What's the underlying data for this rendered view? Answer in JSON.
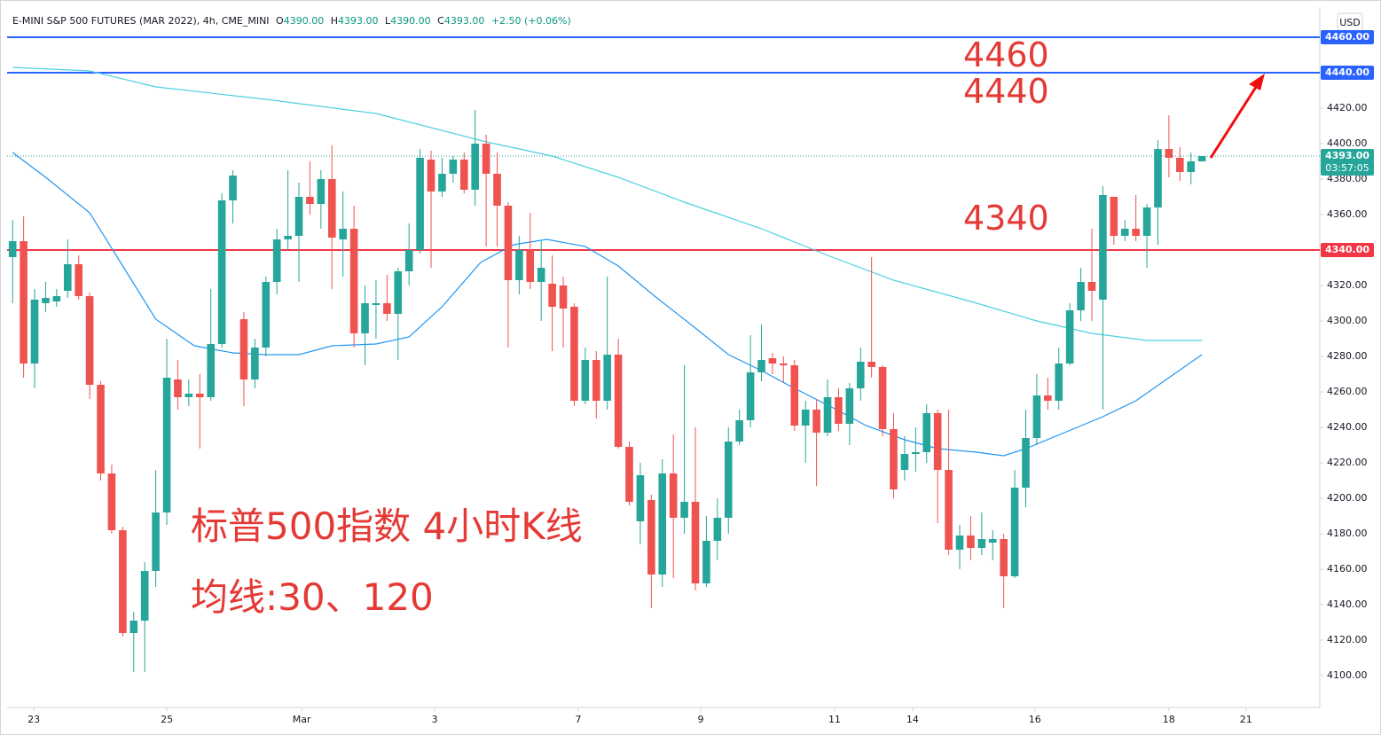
{
  "chart_data": {
    "type": "candlestick",
    "title": "E-MINI S&P 500 FUTURES (MAR 2022), 4h, CME_MINI",
    "legend_values": [
      {
        "key": "O",
        "text": "4390.00"
      },
      {
        "key": "H",
        "text": "4393.00"
      },
      {
        "key": "L",
        "text": "4390.00"
      },
      {
        "key": "C",
        "text": "4393.00"
      }
    ],
    "change": "+2.50 (+0.06%)",
    "currency": "USD",
    "up_color": "#26a69a",
    "down_color": "#ef5350",
    "open": [
      4336,
      4345,
      4276,
      4310,
      4311,
      4317,
      4332,
      4314,
      4264,
      4214,
      4182,
      4124,
      4131,
      4159,
      4192,
      4267,
      4257,
      4259,
      4257,
      4287,
      4368,
      4301,
      4267,
      4285,
      4322,
      4346,
      4348,
      4370,
      4366,
      4380,
      4346,
      4352,
      4293,
      4309,
      4310,
      4304,
      4328,
      4340,
      4391,
      4373,
      4383,
      4391,
      4374,
      4400,
      4383,
      4365,
      4323,
      4340,
      4322,
      4321,
      4320,
      4308,
      4255,
      4278,
      4255,
      4281,
      4229,
      4187,
      4199,
      4157,
      4214,
      4189,
      4198,
      4152,
      4176,
      4189,
      4232,
      4244,
      4271,
      4279,
      4276,
      4275,
      4241,
      4250,
      4237,
      4257,
      4242,
      4262,
      4277,
      4274,
      4239,
      4216,
      4225,
      4226,
      4248,
      4216,
      4171,
      4179,
      4172,
      4175,
      4177,
      4156,
      4206,
      4234,
      4258,
      4255,
      4276,
      4306,
      4322,
      4312,
      4370,
      4348,
      4352,
      4348,
      4364,
      4397,
      4392,
      4384,
      4390
    ],
    "high": [
      4357,
      4359,
      4318,
      4322,
      4318,
      4346,
      4337,
      4316,
      4266,
      4219,
      4184,
      4136,
      4164,
      4216,
      4290,
      4278,
      4267,
      4270,
      4318,
      4372,
      4385,
      4305,
      4290,
      4325,
      4352,
      4385,
      4378,
      4390,
      4385,
      4399,
      4373,
      4365,
      4320,
      4323,
      4326,
      4330,
      4355,
      4397,
      4396,
      4392,
      4393,
      4395,
      4419,
      4405,
      4395,
      4367,
      4348,
      4361,
      4345,
      4337,
      4325,
      4310,
      4285,
      4283,
      4325,
      4290,
      4232,
      4220,
      4202,
      4222,
      4236,
      4275,
      4240,
      4190,
      4200,
      4240,
      4250,
      4292,
      4298,
      4282,
      4280,
      4278,
      4255,
      4256,
      4267,
      4262,
      4265,
      4285,
      4336,
      4275,
      4248,
      4235,
      4240,
      4253,
      4250,
      4250,
      4185,
      4190,
      4192,
      4182,
      4180,
      4216,
      4250,
      4270,
      4268,
      4285,
      4310,
      4330,
      4352,
      4376,
      4370,
      4357,
      4371,
      4366,
      4402,
      4416,
      4398,
      4395,
      4393
    ],
    "low": [
      4310,
      4268,
      4262,
      4305,
      4308,
      4313,
      4312,
      4256,
      4210,
      4180,
      4122,
      4102,
      4102,
      4150,
      4185,
      4250,
      4252,
      4228,
      4255,
      4285,
      4355,
      4252,
      4262,
      4280,
      4315,
      4340,
      4322,
      4360,
      4352,
      4318,
      4325,
      4285,
      4275,
      4290,
      4300,
      4278,
      4320,
      4338,
      4330,
      4370,
      4378,
      4372,
      4365,
      4342,
      4342,
      4285,
      4315,
      4318,
      4300,
      4283,
      4285,
      4252,
      4253,
      4245,
      4250,
      4228,
      4196,
      4174,
      4138,
      4150,
      4155,
      4180,
      4148,
      4150,
      4165,
      4180,
      4230,
      4240,
      4266,
      4270,
      4265,
      4238,
      4220,
      4207,
      4235,
      4238,
      4230,
      4255,
      4268,
      4235,
      4200,
      4210,
      4215,
      4220,
      4186,
      4168,
      4160,
      4165,
      4168,
      4165,
      4138,
      4155,
      4195,
      4230,
      4250,
      4250,
      4275,
      4300,
      4300,
      4250,
      4343,
      4345,
      4345,
      4330,
      4343,
      4381,
      4379,
      4377,
      4390
    ],
    "close": [
      4345,
      4276,
      4312,
      4313,
      4314,
      4332,
      4314,
      4264,
      4214,
      4182,
      4124,
      4131,
      4159,
      4192,
      4268,
      4257,
      4259,
      4257,
      4287,
      4368,
      4382,
      4267,
      4285,
      4322,
      4346,
      4348,
      4370,
      4366,
      4380,
      4347,
      4352,
      4293,
      4310,
      4310,
      4304,
      4328,
      4340,
      4392,
      4373,
      4383,
      4391,
      4374,
      4400,
      4383,
      4365,
      4323,
      4340,
      4322,
      4330,
      4308,
      4307,
      4255,
      4278,
      4255,
      4281,
      4229,
      4198,
      4213,
      4157,
      4214,
      4189,
      4198,
      4152,
      4176,
      4189,
      4232,
      4244,
      4271,
      4278,
      4276,
      4275,
      4241,
      4250,
      4237,
      4257,
      4242,
      4262,
      4277,
      4274,
      4239,
      4205,
      4225,
      4226,
      4248,
      4216,
      4171,
      4179,
      4172,
      4177,
      4177,
      4156,
      4206,
      4234,
      4258,
      4255,
      4276,
      4306,
      4322,
      4317,
      4371,
      4348,
      4352,
      4348,
      4364,
      4397,
      4392,
      4384,
      4390,
      4393
    ],
    "series": [
      {
        "name": "MA 120",
        "color": "#4dd0e1",
        "x": [
          0,
          7,
          13,
          23,
          33,
          43,
          49,
          55,
          61,
          68,
          74,
          80,
          87,
          93,
          98,
          103,
          108
        ],
        "values": [
          4443,
          4441,
          4432,
          4425,
          4417,
          4401,
          4393,
          4381,
          4367,
          4352,
          4337,
          4323,
          4311,
          4300,
          4293,
          4289,
          4289
        ]
      },
      {
        "name": "MA 30",
        "color": "#2196f3",
        "x": [
          0,
          3,
          7,
          10,
          13,
          16.5,
          20,
          23,
          26,
          29,
          33,
          36,
          39,
          42.5,
          45.5,
          48.5,
          52,
          55,
          58.5,
          62,
          65,
          68,
          71,
          74.5,
          77.5,
          81,
          84,
          87.5,
          90,
          92,
          95.5,
          99,
          102,
          105,
          108
        ],
        "values": [
          4395,
          4381,
          4361,
          4331,
          4301,
          4286,
          4282,
          4281,
          4281,
          4286,
          4287,
          4291,
          4308,
          4333,
          4343,
          4346,
          4342,
          4331,
          4313,
          4296,
          4281,
          4272,
          4262,
          4251,
          4241,
          4233,
          4228,
          4226,
          4224,
          4228,
          4237,
          4246,
          4255,
          4268,
          4281
        ]
      }
    ],
    "hlines": [
      {
        "value": 4460,
        "label": "4460.00",
        "color": "#2962ff"
      },
      {
        "value": 4440,
        "label": "4440.00",
        "color": "#2962ff"
      },
      {
        "value": 4340,
        "label": "4340.00",
        "color": "#f23645"
      }
    ],
    "last_price": {
      "value": 4393,
      "label": "4393.00",
      "countdown": "03:57:05",
      "color": "#26a69a"
    },
    "xlim": [
      -0.5,
      118.7
    ],
    "ylim": [
      4082,
      4477
    ],
    "yticks": [
      {
        "value": 4100,
        "label": "4100.00"
      },
      {
        "value": 4120,
        "label": "4120.00"
      },
      {
        "value": 4140,
        "label": "4140.00"
      },
      {
        "value": 4160,
        "label": "4160.00"
      },
      {
        "value": 4180,
        "label": "4180.00"
      },
      {
        "value": 4200,
        "label": "4200.00"
      },
      {
        "value": 4220,
        "label": "4220.00"
      },
      {
        "value": 4240,
        "label": "4240.00"
      },
      {
        "value": 4260,
        "label": "4260.00"
      },
      {
        "value": 4280,
        "label": "4280.00"
      },
      {
        "value": 4300,
        "label": "4300.00"
      },
      {
        "value": 4320,
        "label": "4320.00"
      },
      {
        "value": 4360,
        "label": "4360.00"
      },
      {
        "value": 4380,
        "label": "4380.00"
      },
      {
        "value": 4400,
        "label": "4400.00"
      },
      {
        "value": 4420,
        "label": "4420.00"
      }
    ],
    "xticks": [
      {
        "value": 1.93,
        "label": "23"
      },
      {
        "value": 14.01,
        "label": "25"
      },
      {
        "value": 26.25,
        "label": "Mar"
      },
      {
        "value": 38.33,
        "label": "3"
      },
      {
        "value": 51.37,
        "label": "7"
      },
      {
        "value": 62.48,
        "label": "9"
      },
      {
        "value": 74.64,
        "label": "11"
      },
      {
        "value": 81.72,
        "label": "14"
      },
      {
        "value": 92.83,
        "label": "16"
      },
      {
        "value": 104.99,
        "label": "18"
      },
      {
        "value": 112.0,
        "label": "21"
      }
    ],
    "annotations": [
      "4460",
      "4440",
      "4340",
      "标普500指数 4小时K线",
      "均线:30、120"
    ]
  }
}
